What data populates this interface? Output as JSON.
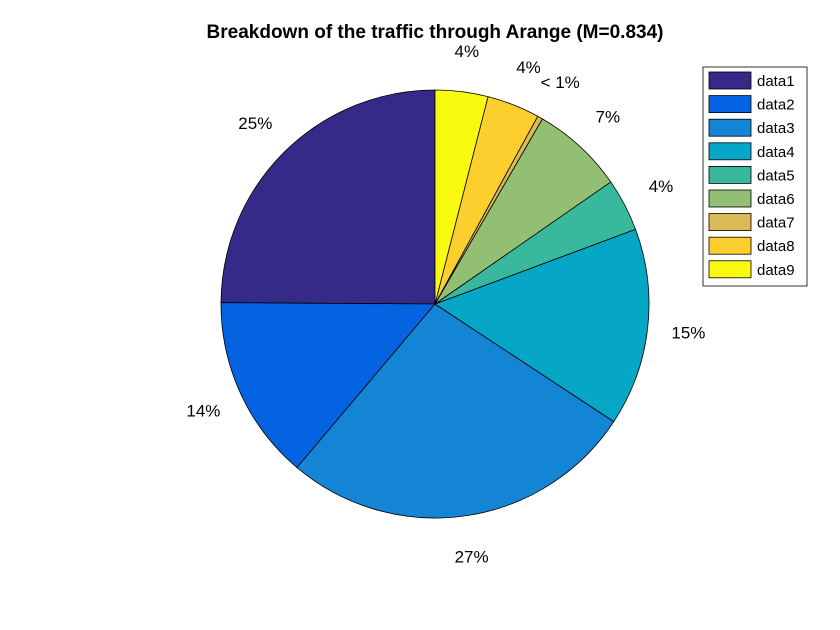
{
  "chart_data": {
    "type": "pie",
    "title": "Breakdown of the traffic through Arange (M=0.834)",
    "legend_position": "top-right",
    "slices": [
      {
        "name": "data1",
        "value": 25,
        "label": "25%",
        "color": "#352a87"
      },
      {
        "name": "data2",
        "value": 14,
        "label": "14%",
        "color": "#0363e1"
      },
      {
        "name": "data3",
        "value": 27,
        "label": "27%",
        "color": "#1485d4"
      },
      {
        "name": "data4",
        "value": 15,
        "label": "15%",
        "color": "#06a7c6"
      },
      {
        "name": "data5",
        "value": 4,
        "label": "4%",
        "color": "#38b99e"
      },
      {
        "name": "data6",
        "value": 7,
        "label": "7%",
        "color": "#92bf73"
      },
      {
        "name": "data7",
        "value": 0.4,
        "label": "< 1%",
        "color": "#d9ba56"
      },
      {
        "name": "data8",
        "value": 4,
        "label": "4%",
        "color": "#fcce2e"
      },
      {
        "name": "data9",
        "value": 4,
        "label": "4%",
        "color": "#f9fb0e"
      }
    ]
  }
}
